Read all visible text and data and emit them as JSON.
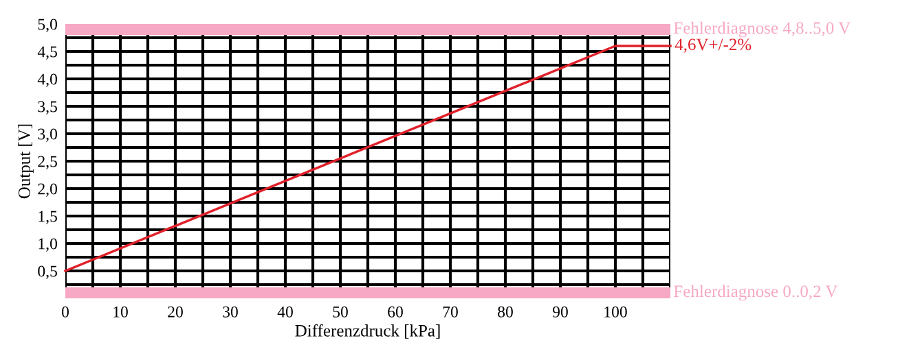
{
  "chart_data": {
    "type": "line",
    "xlabel": "Differenzdruck [kPa]",
    "ylabel": "Output [V]",
    "xlim": [
      0,
      110
    ],
    "ylim": [
      0,
      5.0
    ],
    "xticks": [
      0,
      {
        "value": 5,
        "label": null
      },
      10,
      {
        "value": 15,
        "label": null
      },
      20,
      {
        "value": 25,
        "label": null
      },
      30,
      {
        "value": 35,
        "label": null
      },
      40,
      {
        "value": 45,
        "label": null
      },
      50,
      {
        "value": 55,
        "label": null
      },
      60,
      {
        "value": 65,
        "label": null
      },
      70,
      {
        "value": 75,
        "label": null
      },
      80,
      {
        "value": 85,
        "label": null
      },
      90,
      {
        "value": 95,
        "label": null
      },
      100,
      {
        "value": 105,
        "label": null
      },
      {
        "value": 110,
        "label": null
      }
    ],
    "yticks": [
      {
        "value": 0.25,
        "label": null
      },
      {
        "value": 0.5,
        "label": "0,5"
      },
      {
        "value": 0.75,
        "label": null
      },
      {
        "value": 1.0,
        "label": "1,0"
      },
      {
        "value": 1.25,
        "label": null
      },
      {
        "value": 1.5,
        "label": "1,5"
      },
      {
        "value": 1.75,
        "label": null
      },
      {
        "value": 2.0,
        "label": "2,0"
      },
      {
        "value": 2.25,
        "label": null
      },
      {
        "value": 2.5,
        "label": "2,5"
      },
      {
        "value": 2.75,
        "label": null
      },
      {
        "value": 3.0,
        "label": "3,0"
      },
      {
        "value": 3.25,
        "label": null
      },
      {
        "value": 3.5,
        "label": "3,5"
      },
      {
        "value": 3.75,
        "label": null
      },
      {
        "value": 4.0,
        "label": "4,0"
      },
      {
        "value": 4.25,
        "label": null
      },
      {
        "value": 4.5,
        "label": "4,5"
      },
      {
        "value": 4.75,
        "label": null
      },
      {
        "value": 5.0,
        "label": "5,0"
      }
    ],
    "grid": true,
    "marker": "none",
    "line_style": "solid",
    "series": [
      {
        "color": "#e0202a",
        "x": [
          0,
          100,
          110
        ],
        "values": [
          0.5,
          4.6,
          4.6
        ]
      }
    ],
    "bands": [
      {
        "axis": "y",
        "from": 4.8,
        "to": 5.0,
        "label": "Fehlerdiagnose 4,8..5,0 V",
        "color": "#f7a8c4"
      },
      {
        "axis": "y",
        "from": 0,
        "to": 0.2,
        "label": "Fehlerdiagnose 0..0,2 V",
        "color": "#f7a8c4"
      }
    ],
    "annotations": [
      {
        "text": "4,6V+/-2%",
        "x": 110,
        "y": 4.6
      }
    ]
  }
}
